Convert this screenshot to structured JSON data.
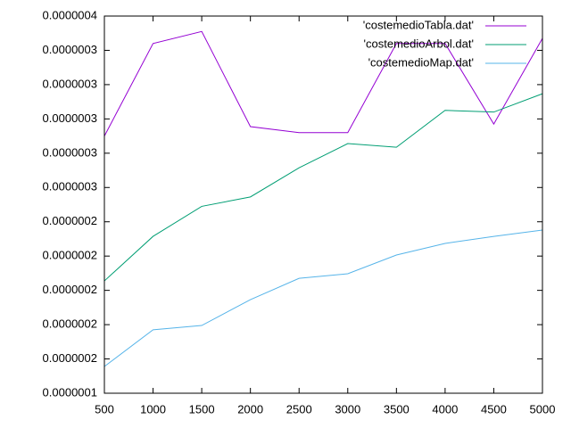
{
  "chart_data": {
    "type": "line",
    "x": [
      500,
      1000,
      1500,
      2000,
      2500,
      3000,
      3500,
      4000,
      4500,
      5000
    ],
    "series": [
      {
        "name": "'costemedioTabla.dat'",
        "color": "#9400d3",
        "values": [
          2.9e-07,
          3.44e-07,
          3.51e-07,
          2.955e-07,
          2.92e-07,
          2.92e-07,
          3.44e-07,
          3.44e-07,
          2.97e-07,
          3.47e-07
        ]
      },
      {
        "name": "'costemedioArbol.dat'",
        "color": "#009e73",
        "values": [
          2.055e-07,
          2.315e-07,
          2.49e-07,
          2.545e-07,
          2.715e-07,
          2.856e-07,
          2.835e-07,
          3.05e-07,
          3.04e-07,
          3.147e-07
        ]
      },
      {
        "name": "'costemedioMap.dat'",
        "color": "#56b4e9",
        "values": [
          1.556e-07,
          1.77e-07,
          1.795e-07,
          1.946e-07,
          2.07e-07,
          2.097e-07,
          2.206e-07,
          2.274e-07,
          2.315e-07,
          2.352e-07
        ]
      }
    ],
    "xlim": [
      500,
      5000
    ],
    "xticks": [
      500,
      1000,
      1500,
      2000,
      2500,
      3000,
      3500,
      4000,
      4500,
      5000
    ],
    "ylim": [
      1.4e-07,
      3.6e-07
    ],
    "yticks": [
      {
        "value": 1.4e-07,
        "label": "0.0000001"
      },
      {
        "value": 1.6e-07,
        "label": "0.0000002"
      },
      {
        "value": 1.8e-07,
        "label": "0.0000002"
      },
      {
        "value": 2e-07,
        "label": "0.0000002"
      },
      {
        "value": 2.2e-07,
        "label": "0.0000002"
      },
      {
        "value": 2.4e-07,
        "label": "0.0000002"
      },
      {
        "value": 2.6e-07,
        "label": "0.0000003"
      },
      {
        "value": 2.8e-07,
        "label": "0.0000003"
      },
      {
        "value": 3e-07,
        "label": "0.0000003"
      },
      {
        "value": 3.2e-07,
        "label": "0.0000003"
      },
      {
        "value": 3.4e-07,
        "label": "0.0000003"
      },
      {
        "value": 3.6e-07,
        "label": "0.0000004"
      }
    ],
    "legend": "top-right"
  }
}
